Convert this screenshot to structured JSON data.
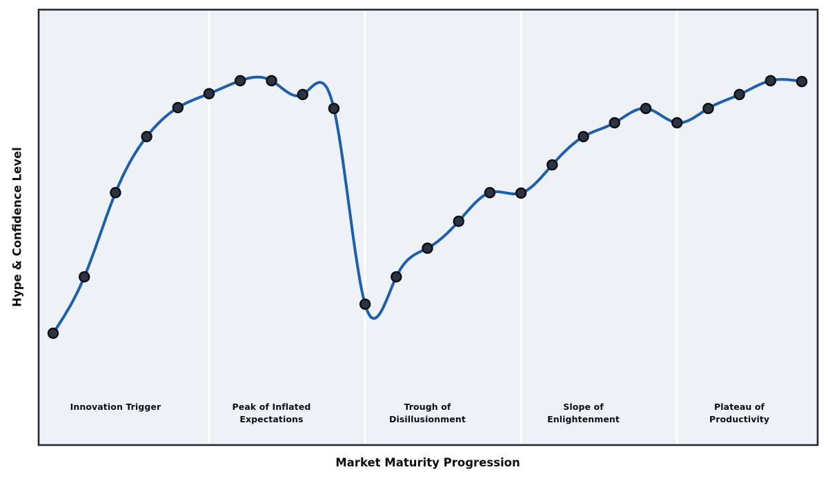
{
  "figure": {
    "background": "#ffffff",
    "plot_background": "#eef2f7",
    "border_color": "#24282e",
    "separator_color": "#ffffff",
    "text_color": "#0d0f12"
  },
  "axes": {
    "x_label": "Market Maturity Progression",
    "y_label": "Hype & Confidence Level"
  },
  "phases": [
    {
      "label": "Innovation Trigger",
      "center_index": 2
    },
    {
      "label": "Peak of Inflated\nExpectations",
      "center_index": 7
    },
    {
      "label": "Trough of\nDisillusionment",
      "center_index": 12
    },
    {
      "label": "Slope of\nEnlightenment",
      "center_index": 17
    },
    {
      "label": "Plateau of\nProductivity",
      "center_index": 22
    }
  ],
  "chart_data": {
    "type": "line",
    "title": "",
    "xlabel": "Market Maturity Progression",
    "ylabel": "Hype & Confidence Level",
    "x": [
      0,
      1,
      2,
      3,
      4,
      5,
      6,
      7,
      8,
      9,
      10,
      11,
      12,
      13,
      14,
      15,
      16,
      17,
      18,
      19,
      20,
      21,
      22,
      23,
      24
    ],
    "series": [
      {
        "name": "Hype & Confidence Level",
        "color": "#1a5fb0",
        "marker": "circle",
        "marker_fill": "#2b3440",
        "marker_edge": "#0a0d12",
        "values": [
          25.6,
          38.6,
          58.0,
          70.9,
          77.6,
          80.8,
          83.8,
          83.8,
          80.6,
          77.4,
          32.3,
          38.6,
          45.2,
          51.4,
          58.0,
          57.9,
          64.4,
          70.9,
          74.1,
          77.4,
          74.1,
          77.4,
          80.6,
          83.8,
          83.6
        ]
      }
    ],
    "ylim": [
      0,
      100
    ],
    "xlim": [
      -0.45,
      24.5
    ],
    "grid": false,
    "ticks": "none",
    "smoothing": "natural-cubic-spline",
    "separators_x": [
      5,
      10,
      15,
      20
    ],
    "phase_bands": [
      {
        "label": "Innovation Trigger",
        "start": 0,
        "end": 5
      },
      {
        "label": "Peak of Inflated Expectations",
        "start": 5,
        "end": 10
      },
      {
        "label": "Trough of Disillusionment",
        "start": 10,
        "end": 15
      },
      {
        "label": "Slope of Enlightenment",
        "start": 15,
        "end": 20
      },
      {
        "label": "Plateau of Productivity",
        "start": 20,
        "end": 24
      }
    ]
  }
}
